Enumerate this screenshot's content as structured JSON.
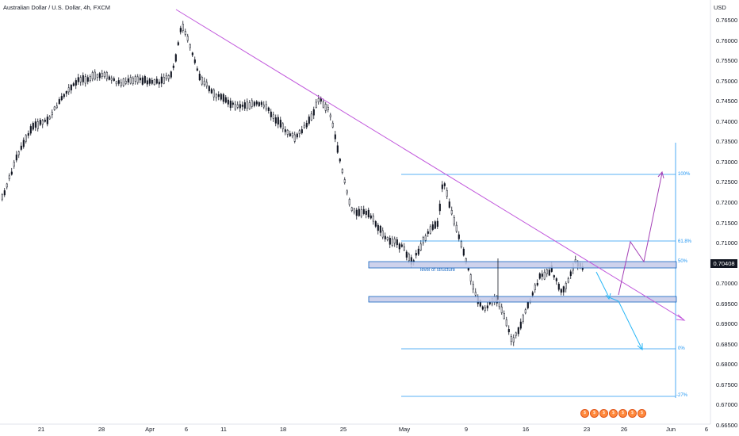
{
  "header": {
    "title": "Australian Dollar / U.S. Dollar, 4h, FXCM"
  },
  "price_axis": {
    "currency": "USD",
    "ticks": [
      "0.76500",
      "0.76000",
      "0.75500",
      "0.75000",
      "0.74500",
      "0.74000",
      "0.73500",
      "0.73000",
      "0.72500",
      "0.72000",
      "0.71500",
      "0.71000",
      "0.70500",
      "0.70000",
      "0.69500",
      "0.69000",
      "0.68500",
      "0.68000",
      "0.67500",
      "0.67000",
      "0.66500"
    ],
    "last_price": "0.70408"
  },
  "time_axis": {
    "ticks": [
      "21",
      "28",
      "Apr",
      "6",
      "11",
      "18",
      "25",
      "May",
      "9",
      "16",
      "23",
      "26",
      "Jun",
      "6"
    ]
  },
  "annotations": {
    "fib_levels": [
      "100%",
      "61.8%",
      "50%",
      "0%",
      "-27%"
    ],
    "structure_label": "level of structure"
  },
  "events": [
    "$",
    "$",
    "$",
    "$",
    "$",
    "$",
    "$"
  ],
  "colors": {
    "bull": "#131722",
    "bear": "#131722",
    "trendline": "#c158dc",
    "fib": "#2196f3",
    "zone_fill": "#c5cae9",
    "zone_border": "#1565c0",
    "projection_up": "#a440b6",
    "projection_down": "#29b6f6"
  }
}
